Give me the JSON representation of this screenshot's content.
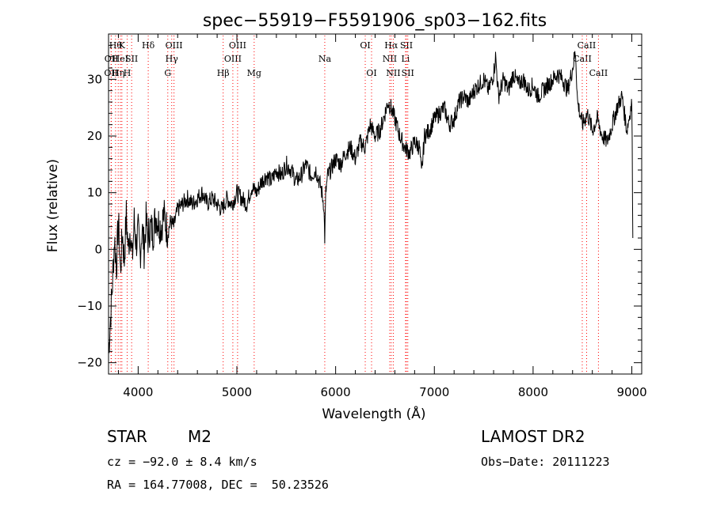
{
  "chart_data": {
    "type": "line",
    "title": "spec−55919−F5591906_sp03−162.fits",
    "xlabel": "Wavelength (Å)",
    "ylabel": "Flux (relative)",
    "xlim": [
      3700,
      9100
    ],
    "ylim": [
      -22,
      38
    ],
    "xticks": [
      4000,
      5000,
      6000,
      7000,
      8000,
      9000
    ],
    "yticks": [
      -20,
      -10,
      0,
      10,
      20,
      30
    ],
    "grid": false,
    "line_color": "#000000",
    "marker_color": "#ff0000",
    "series": [
      {
        "x": [
          3700,
          3720,
          3740,
          3760,
          3780,
          3800,
          3820,
          3840,
          3860,
          3880,
          3900,
          3920,
          3940,
          3960,
          3980,
          4000,
          4020,
          4040,
          4060,
          4080,
          4100,
          4120,
          4150,
          4180,
          4200,
          4230,
          4260,
          4300,
          4330,
          4360,
          4400,
          4450,
          4500,
          4550,
          4600,
          4650,
          4700,
          4750,
          4800,
          4850,
          4900,
          4950,
          5000,
          5050,
          5100,
          5150,
          5200,
          5250,
          5300,
          5350,
          5400,
          5450,
          5500,
          5550,
          5600,
          5650,
          5700,
          5750,
          5800,
          5850,
          5880,
          5890,
          5900,
          5920,
          5950,
          6000,
          6050,
          6100,
          6150,
          6200,
          6250,
          6300,
          6350,
          6400,
          6450,
          6500,
          6530,
          6560,
          6600,
          6650,
          6700,
          6750,
          6800,
          6850,
          6870,
          6900,
          6950,
          7000,
          7050,
          7100,
          7150,
          7200,
          7250,
          7300,
          7350,
          7400,
          7450,
          7500,
          7550,
          7600,
          7620,
          7650,
          7700,
          7750,
          7800,
          7850,
          7900,
          7950,
          8000,
          8050,
          8100,
          8150,
          8200,
          8250,
          8300,
          8350,
          8400,
          8430,
          8450,
          8500,
          8550,
          8600,
          8650,
          8700,
          8750,
          8800,
          8850,
          8900,
          8950,
          9000,
          9010
        ],
        "y": [
          -18,
          -12,
          -6,
          2,
          -3,
          5,
          -4,
          3,
          -2,
          6,
          0,
          4,
          -2,
          5,
          1,
          3,
          -1,
          4,
          0,
          5,
          2,
          4,
          3,
          6,
          5,
          4,
          6,
          3,
          5,
          4,
          7,
          8,
          9,
          8,
          9,
          10,
          8,
          9,
          8,
          7,
          9,
          8,
          10,
          9,
          8,
          11,
          10,
          12,
          13,
          12,
          14,
          13,
          15,
          14,
          12,
          13,
          15,
          13,
          14,
          11,
          8,
          2,
          10,
          13,
          14,
          16,
          15,
          17,
          18,
          16,
          19,
          18,
          22,
          20,
          21,
          24,
          26,
          25,
          23,
          20,
          18,
          17,
          19,
          18,
          13,
          20,
          21,
          23,
          24,
          25,
          22,
          23,
          26,
          27,
          26,
          28,
          29,
          30,
          28,
          31,
          34,
          27,
          30,
          28,
          31,
          29,
          30,
          28,
          29,
          27,
          28,
          29,
          30,
          31,
          30,
          28,
          32,
          35,
          26,
          22,
          24,
          21,
          23,
          20,
          19,
          22,
          25,
          27,
          21,
          26,
          2
        ]
      }
    ],
    "line_markers": [
      {
        "x": 3726,
        "label": "OII",
        "row": 2,
        "color": "#ff0000"
      },
      {
        "x": 3729,
        "label": "OII",
        "row": 1,
        "color": "#ff0000"
      },
      {
        "x": 3771,
        "label": "Hθ",
        "row": 0,
        "color": "#ff0000"
      },
      {
        "x": 3798,
        "label": "Hη",
        "row": 2,
        "color": "#ff0000"
      },
      {
        "x": 3820,
        "label": "HeI",
        "row": 1,
        "color": "#ff0000"
      },
      {
        "x": 3835,
        "label": "K",
        "row": 0,
        "color": "#ff0000"
      },
      {
        "x": 3889,
        "label": "H",
        "row": 2,
        "color": "#ff0000"
      },
      {
        "x": 3934,
        "label": "SII",
        "row": 1,
        "color": "#ff0000"
      },
      {
        "x": 4102,
        "label": "Hδ",
        "row": 0,
        "color": "#ff0000"
      },
      {
        "x": 4300,
        "label": "G",
        "row": 2,
        "color": "#ff0000"
      },
      {
        "x": 4340,
        "label": "Hγ",
        "row": 1,
        "color": "#ff0000"
      },
      {
        "x": 4363,
        "label": "OIII",
        "row": 0,
        "color": "#ff0000"
      },
      {
        "x": 4861,
        "label": "Hβ",
        "row": 2,
        "color": "#ff0000"
      },
      {
        "x": 4959,
        "label": "OIII",
        "row": 1,
        "color": "#ff0000"
      },
      {
        "x": 5007,
        "label": "OIII",
        "row": 0,
        "color": "#ff0000"
      },
      {
        "x": 5175,
        "label": "Mg",
        "row": 2,
        "color": "#ff0000"
      },
      {
        "x": 5890,
        "label": "Na",
        "row": 1,
        "color": "#ff0000"
      },
      {
        "x": 6300,
        "label": "OI",
        "row": 0,
        "color": "#ff0000"
      },
      {
        "x": 6364,
        "label": "OI",
        "row": 2,
        "color": "#ff0000"
      },
      {
        "x": 6548,
        "label": "NII",
        "row": 1,
        "color": "#ff0000"
      },
      {
        "x": 6563,
        "label": "Hα",
        "row": 0,
        "color": "#ff0000"
      },
      {
        "x": 6584,
        "label": "NII",
        "row": 2,
        "color": "#ff0000"
      },
      {
        "x": 6708,
        "label": "Li",
        "row": 1,
        "color": "#ff0000"
      },
      {
        "x": 6717,
        "label": "SII",
        "row": 0,
        "color": "#ff0000"
      },
      {
        "x": 6731,
        "label": "SII",
        "row": 2,
        "color": "#ff0000"
      },
      {
        "x": 8498,
        "label": "CaII",
        "row": 1,
        "color": "#ff0000"
      },
      {
        "x": 8542,
        "label": "CaII",
        "row": 0,
        "color": "#ff0000"
      },
      {
        "x": 8662,
        "label": "CaII",
        "row": 2,
        "color": "#ff0000"
      }
    ]
  },
  "info": {
    "class": "STAR",
    "subclass": "M2",
    "survey": "LAMOST DR2",
    "cz": "cz = −92.0 ± 8.4 km/s",
    "obs_date": "Obs−Date: 20111223",
    "coords": "RA = 164.77008, DEC =  50.23526"
  }
}
